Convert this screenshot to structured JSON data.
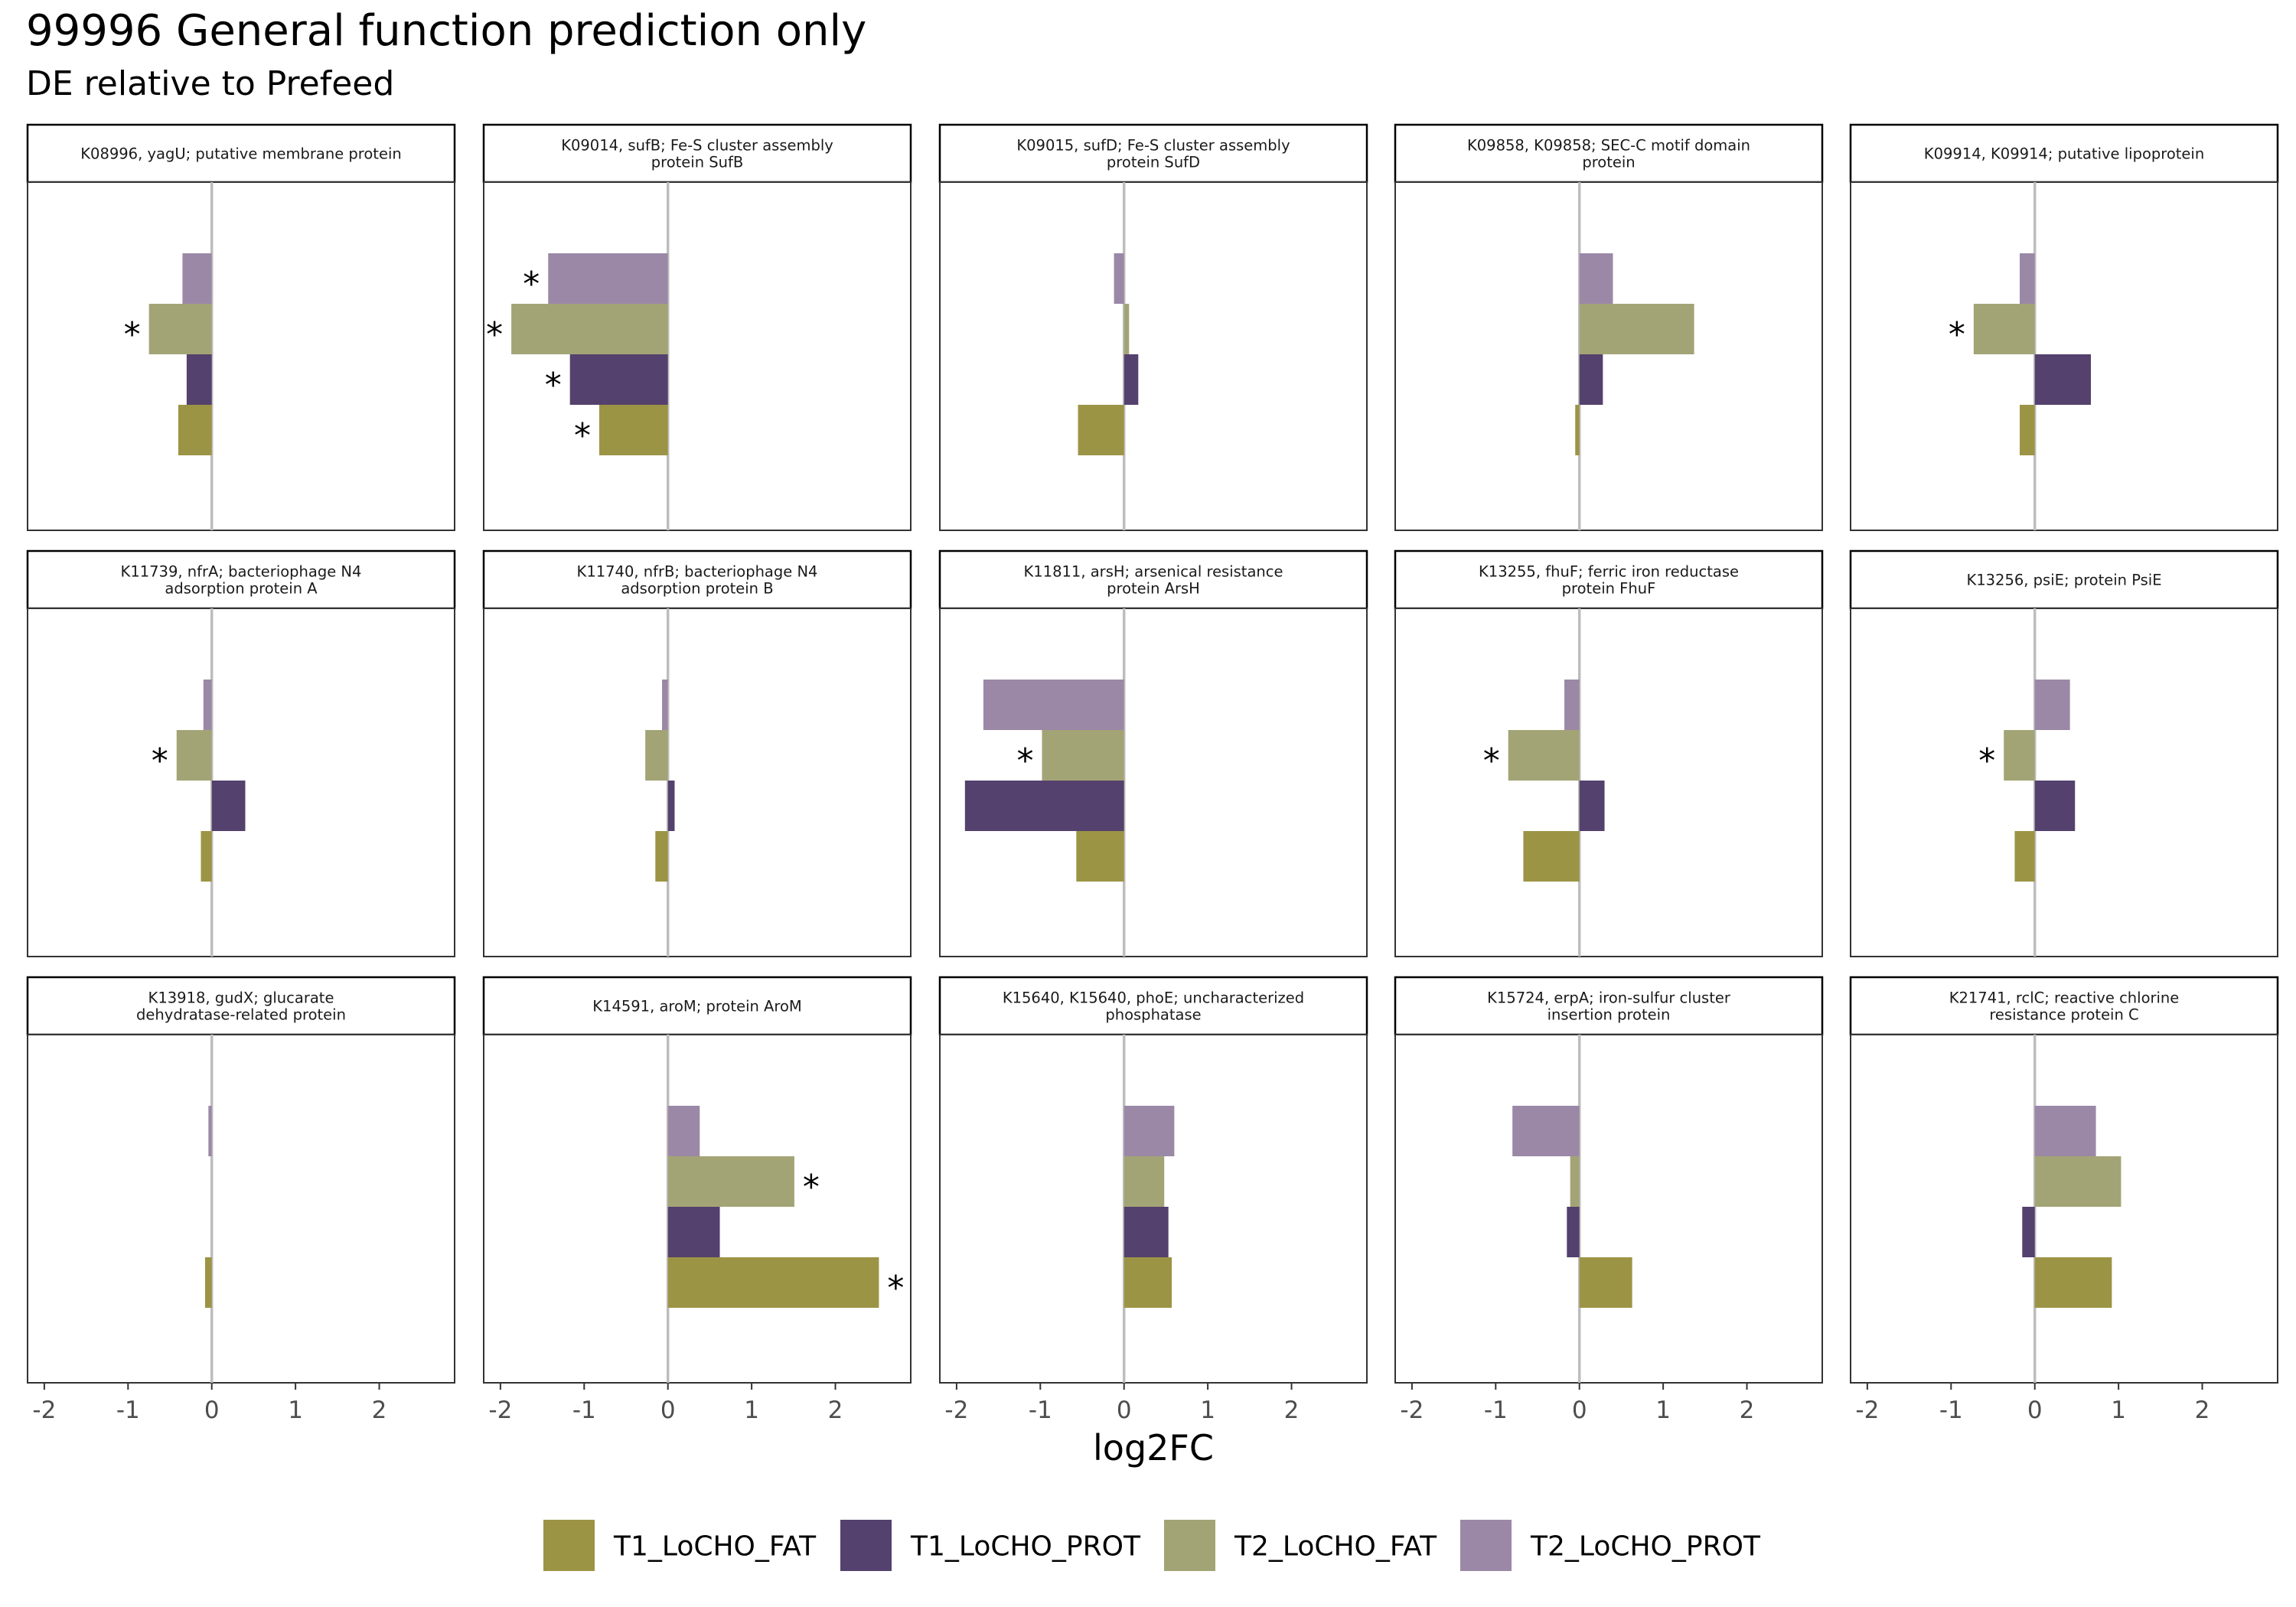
{
  "title": "99996 General function prediction only",
  "subtitle": "DE relative to Prefeed",
  "chart_data": {
    "type": "bar",
    "orientation": "horizontal",
    "facet_layout": "3 rows x 5 columns",
    "xlabel": "log2FC",
    "xlim": [
      -2.2,
      2.9
    ],
    "xticks": [
      -2,
      -1,
      0,
      1,
      2
    ],
    "significance_marker": "*",
    "grid": false,
    "legend_position": "bottom",
    "series": [
      {
        "name": "T1_LoCHO_FAT",
        "color": "#9C9445"
      },
      {
        "name": "T1_LoCHO_PROT",
        "color": "#54416D"
      },
      {
        "name": "T2_LoCHO_FAT",
        "color": "#A3A476"
      },
      {
        "name": "T2_LoCHO_PROT",
        "color": "#9B88A6"
      }
    ],
    "panels": [
      {
        "label": [
          "K08996, yagU; putative membrane protein"
        ],
        "values": [
          -0.4,
          -0.3,
          -0.75,
          -0.35
        ],
        "sig": [
          false,
          false,
          true,
          false
        ]
      },
      {
        "label": [
          "K09014, sufB; Fe-S cluster assembly",
          "protein SufB"
        ],
        "values": [
          -0.82,
          -1.17,
          -1.87,
          -1.43
        ],
        "sig": [
          true,
          true,
          true,
          true
        ]
      },
      {
        "label": [
          "K09015, sufD; Fe-S cluster assembly",
          "protein SufD"
        ],
        "values": [
          -0.55,
          0.17,
          0.06,
          -0.12
        ],
        "sig": [
          false,
          false,
          false,
          false
        ]
      },
      {
        "label": [
          "K09858, K09858; SEC-C motif domain",
          "protein"
        ],
        "values": [
          -0.05,
          0.28,
          1.37,
          0.4
        ],
        "sig": [
          false,
          false,
          false,
          false
        ]
      },
      {
        "label": [
          "K09914, K09914; putative lipoprotein"
        ],
        "values": [
          -0.18,
          0.67,
          -0.73,
          -0.18
        ],
        "sig": [
          false,
          false,
          true,
          false
        ]
      },
      {
        "label": [
          "K11739, nfrA; bacteriophage N4",
          "adsorption protein A"
        ],
        "values": [
          -0.13,
          0.4,
          -0.42,
          -0.1
        ],
        "sig": [
          false,
          false,
          true,
          false
        ]
      },
      {
        "label": [
          "K11740, nfrB; bacteriophage N4",
          "adsorption protein B"
        ],
        "values": [
          -0.15,
          0.08,
          -0.27,
          -0.07
        ],
        "sig": [
          false,
          false,
          false,
          false
        ]
      },
      {
        "label": [
          "K11811, arsH; arsenical resistance",
          "protein ArsH"
        ],
        "values": [
          -0.57,
          -1.9,
          -0.98,
          -1.68
        ],
        "sig": [
          false,
          false,
          true,
          false
        ]
      },
      {
        "label": [
          "K13255, fhuF; ferric iron reductase",
          "protein FhuF"
        ],
        "values": [
          -0.67,
          0.3,
          -0.85,
          -0.18
        ],
        "sig": [
          false,
          false,
          true,
          false
        ]
      },
      {
        "label": [
          "K13256, psiE; protein PsiE"
        ],
        "values": [
          -0.24,
          0.48,
          -0.37,
          0.42
        ],
        "sig": [
          false,
          false,
          true,
          false
        ]
      },
      {
        "label": [
          "K13918, gudX; glucarate",
          "dehydratase-related protein"
        ],
        "values": [
          -0.08,
          0.0,
          0.0,
          -0.04
        ],
        "sig": [
          false,
          false,
          false,
          false
        ]
      },
      {
        "label": [
          "K14591, aroM; protein AroM"
        ],
        "values": [
          2.52,
          0.62,
          1.51,
          0.38
        ],
        "sig": [
          true,
          false,
          true,
          false
        ]
      },
      {
        "label": [
          "K15640, K15640, phoE; uncharacterized",
          "phosphatase"
        ],
        "values": [
          0.57,
          0.53,
          0.48,
          0.6
        ],
        "sig": [
          false,
          false,
          false,
          false
        ]
      },
      {
        "label": [
          "K15724, erpA; iron-sulfur cluster",
          "insertion protein"
        ],
        "values": [
          0.63,
          -0.15,
          -0.11,
          -0.8
        ],
        "sig": [
          false,
          false,
          false,
          false
        ]
      },
      {
        "label": [
          "K21741, rclC; reactive chlorine",
          "resistance protein C"
        ],
        "values": [
          0.92,
          -0.15,
          1.03,
          0.73
        ],
        "sig": [
          false,
          false,
          false,
          false
        ]
      }
    ]
  }
}
